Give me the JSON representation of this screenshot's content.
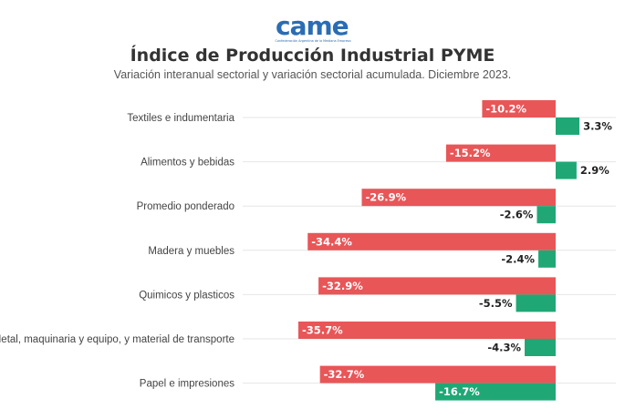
{
  "logo": {
    "text": "came",
    "tagline": "Confederación Argentina de la Mediana Empresa"
  },
  "title": "Índice de Producción Industrial PYME",
  "subtitle": "Variación interanual sectorial y variación sectorial acumulada. Diciembre 2023.",
  "colors": {
    "interanual": "#e85658",
    "acumulada": "#1fa876",
    "grid": "#e6e6e6",
    "brand": "#2a6db4"
  },
  "chart_data": {
    "type": "bar",
    "orientation": "horizontal",
    "categories": [
      "Textiles e indumentaria",
      "Alimentos y bebidas",
      "Promedio ponderado",
      "Madera y muebles",
      "Quimicos y plasticos",
      "Metal, maquinaria y equipo, y material de transporte",
      "Papel e impresiones"
    ],
    "series": [
      {
        "values": [
          -10.2,
          -15.2,
          -26.9,
          -34.4,
          -32.9,
          -35.7,
          -32.7
        ],
        "labels": [
          "-10.2%",
          "-15.2%",
          "-26.9%",
          "-34.4%",
          "-32.9%",
          "-35.7%",
          "-32.7%"
        ]
      },
      {
        "values": [
          3.3,
          2.9,
          -2.6,
          -2.4,
          -5.5,
          -4.3,
          -16.7
        ],
        "labels": [
          "3.3%",
          "2.9%",
          "-2.6%",
          "-2.4%",
          "-5.5%",
          "-4.3%",
          "-16.7%"
        ]
      }
    ],
    "xlim": [
      -40,
      5
    ],
    "grid": true,
    "legend": "none"
  }
}
